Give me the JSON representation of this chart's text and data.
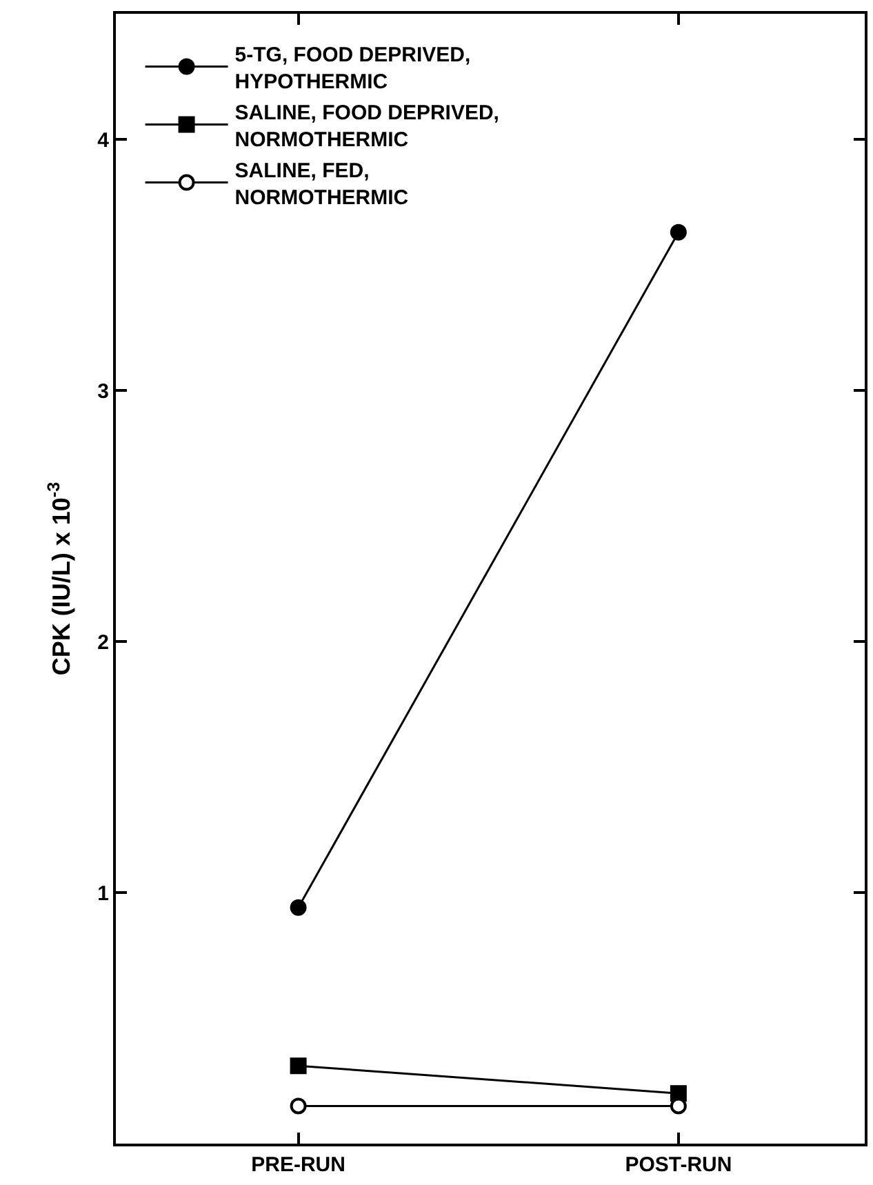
{
  "chart_data": {
    "type": "line",
    "ylabel": "CPK (IU/L) x 10$^{-3}$",
    "categories": [
      "PRE-RUN",
      "POST-RUN"
    ],
    "series": [
      {
        "name": "5-TG, FOOD DEPRIVED,\nHYPOTHERMIC",
        "color": "#000000",
        "marker": "circle",
        "values": [
          0.94,
          3.63
        ]
      },
      {
        "name": "SALINE, FOOD DEPRIVED,\nNORMOTHERMIC",
        "color": "#000000",
        "marker": "square",
        "values": [
          0.31,
          0.2
        ]
      },
      {
        "name": "SALINE, FED,\nNORMOTHERMIC",
        "color": "#000000",
        "marker": "circle-open",
        "values": [
          0.15,
          0.15
        ]
      }
    ],
    "ylim": [
      0,
      4.5
    ],
    "yticks": [
      1,
      2,
      3,
      4
    ],
    "grid": false,
    "legend": "top left",
    "line_style": "solid"
  }
}
